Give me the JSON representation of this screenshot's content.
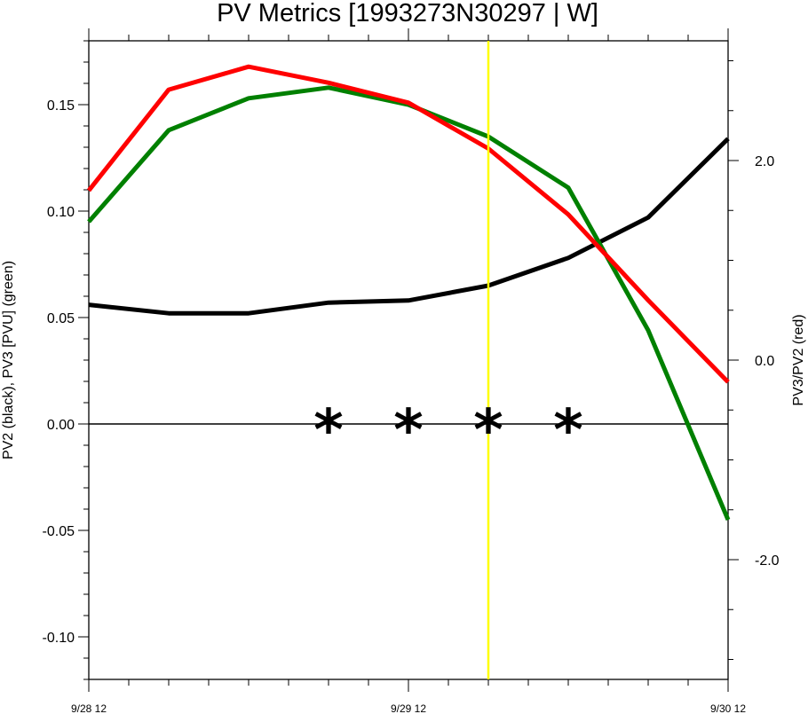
{
  "chart_data": {
    "type": "line",
    "title": "PV Metrics [1993273N30297 | W]",
    "xlabel": "",
    "ylabel_left": "PV2 (black), PV3 [PVU] (green)",
    "ylabel_right": "PV3/PV2 (red)",
    "x_tick_labels": [
      "9/28 12",
      "9/29 12",
      "9/30 12"
    ],
    "x_hours": [
      0,
      6,
      12,
      18,
      24,
      30,
      36,
      42,
      48
    ],
    "ylim_left": [
      -0.12,
      0.18
    ],
    "ylim_right": [
      -3.2,
      3.2
    ],
    "y_ticks_left": [
      "0.15",
      "0.10",
      "0.05",
      "0.00",
      "-0.05",
      "-0.10"
    ],
    "y_ticks_right": [
      "2.0",
      "0.0",
      "-2.0"
    ],
    "series": [
      {
        "name": "PV2 (black)",
        "axis": "left",
        "color": "#000000",
        "values": [
          0.056,
          0.052,
          0.052,
          0.057,
          0.058,
          0.065,
          0.078,
          0.097,
          0.134
        ]
      },
      {
        "name": "PV3 (green)",
        "axis": "left",
        "color": "#008000",
        "values": [
          0.095,
          0.138,
          0.153,
          0.158,
          0.15,
          0.135,
          0.111,
          0.044,
          -0.045
        ]
      },
      {
        "name": "PV3/PV2 (red)",
        "axis": "right",
        "color": "#ff0000",
        "values": [
          1.7,
          2.71,
          2.94,
          2.78,
          2.58,
          2.12,
          1.46,
          0.6,
          -0.22
        ]
      }
    ],
    "zero_line": 0.0,
    "marker_hours": [
      18,
      24,
      30,
      36
    ],
    "marker_glyph": "*",
    "vertical_line_hour": 30,
    "vertical_line_color": "#ffff00",
    "grid": false
  }
}
